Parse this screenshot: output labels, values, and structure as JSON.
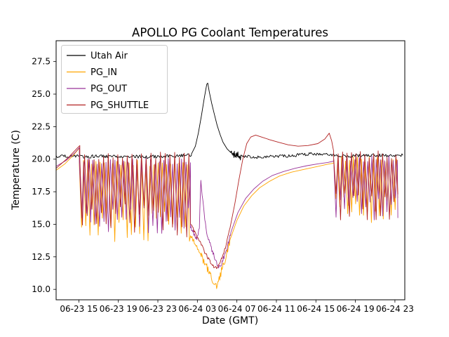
{
  "chart_data": {
    "type": "line",
    "title": "APOLLO PG Coolant Temperatures",
    "xlabel": "Date (GMT)",
    "ylabel": "Temperature (C)",
    "x_unit": "hours since 06-23 00:00 GMT",
    "xlim": [
      12.7,
      48.0
    ],
    "ylim": [
      9.2,
      29.1
    ],
    "x_ticks": [
      15,
      19,
      23,
      27,
      31,
      35,
      39,
      43,
      47
    ],
    "x_tick_labels": [
      "06-23 15",
      "06-23 19",
      "06-23 23",
      "06-24 03",
      "06-24 07",
      "06-24 11",
      "06-24 15",
      "06-24 19",
      "06-24 23"
    ],
    "y_ticks": [
      10.0,
      12.5,
      15.0,
      17.5,
      20.0,
      22.5,
      25.0,
      27.5
    ],
    "grid": false,
    "legend_position": "upper left",
    "series": [
      {
        "name": "Utah Air",
        "color": "#000000",
        "segments": [
          {
            "type": "path",
            "pts": [
              [
                12.7,
                20.2
              ],
              [
                18.0,
                20.22
              ],
              [
                22.0,
                20.18
              ],
              [
                26.4,
                20.3
              ]
            ],
            "amp": 0.13,
            "step": 0.09,
            "seed": 21
          },
          {
            "type": "path",
            "pts": [
              [
                26.4,
                20.4
              ],
              [
                26.8,
                21.0
              ],
              [
                27.1,
                22.0
              ],
              [
                27.4,
                23.3
              ],
              [
                27.7,
                24.7
              ],
              [
                27.95,
                25.75
              ],
              [
                28.05,
                25.85
              ],
              [
                28.2,
                25.2
              ],
              [
                28.45,
                24.3
              ],
              [
                28.7,
                23.5
              ],
              [
                29.0,
                22.6
              ],
              [
                29.3,
                21.9
              ],
              [
                29.6,
                21.3
              ],
              [
                30.0,
                20.8
              ],
              [
                30.4,
                20.5
              ]
            ]
          },
          {
            "type": "path",
            "pts": [
              [
                30.4,
                20.5
              ],
              [
                31.4,
                20.2
              ]
            ],
            "amp": 0.3,
            "step": 0.05,
            "seed": 22
          },
          {
            "type": "path",
            "pts": [
              [
                31.4,
                20.2
              ],
              [
                33.5,
                20.15
              ],
              [
                36.0,
                20.25
              ],
              [
                38.5,
                20.4
              ],
              [
                40.0,
                20.35
              ],
              [
                42.5,
                20.25
              ],
              [
                45.0,
                20.3
              ],
              [
                47.8,
                20.3
              ]
            ],
            "amp": 0.12,
            "step": 0.09,
            "seed": 23
          }
        ]
      },
      {
        "name": "PG_IN",
        "color": "#FFA500",
        "segments": [
          {
            "type": "path",
            "pts": [
              [
                12.7,
                19.15
              ],
              [
                13.6,
                19.65
              ],
              [
                14.5,
                20.35
              ],
              [
                15.05,
                20.85
              ]
            ]
          },
          {
            "type": "saw",
            "x0": 15.05,
            "x1": 26.3,
            "min": 13.6,
            "max": 19.95,
            "period": 0.42,
            "lowVar": 2.4,
            "hiVar": 0.5,
            "seed": 7
          },
          {
            "type": "path",
            "pts": [
              [
                26.3,
                14.2
              ],
              [
                26.7,
                13.6
              ],
              [
                27.1,
                13.0
              ],
              [
                27.4,
                12.5
              ]
            ],
            "amp": 0.15,
            "step": 0.08,
            "seed": 31
          },
          {
            "type": "path",
            "pts": [
              [
                27.4,
                12.5
              ],
              [
                27.9,
                11.8
              ],
              [
                28.3,
                11.2
              ],
              [
                28.7,
                10.5
              ],
              [
                28.95,
                10.25
              ],
              [
                29.2,
                10.7
              ],
              [
                29.5,
                11.6
              ],
              [
                29.9,
                12.6
              ],
              [
                30.3,
                13.8
              ]
            ],
            "amp": 0.3,
            "step": 0.06,
            "seed": 32
          },
          {
            "type": "path",
            "pts": [
              [
                30.3,
                13.8
              ],
              [
                31.0,
                15.3
              ],
              [
                31.7,
                16.4
              ],
              [
                32.5,
                17.2
              ],
              [
                33.3,
                17.8
              ],
              [
                34.3,
                18.3
              ],
              [
                35.3,
                18.7
              ],
              [
                36.5,
                19.0
              ],
              [
                37.7,
                19.2
              ],
              [
                38.9,
                19.4
              ],
              [
                40.1,
                19.6
              ],
              [
                40.8,
                19.7
              ]
            ]
          },
          {
            "type": "saw",
            "x0": 40.8,
            "x1": 47.3,
            "min": 14.9,
            "max": 20.25,
            "period": 0.4,
            "lowVar": 2.2,
            "hiVar": 0.5,
            "seed": 11
          }
        ]
      },
      {
        "name": "PG_OUT",
        "color": "#993399",
        "segments": [
          {
            "type": "path",
            "pts": [
              [
                12.7,
                19.45
              ],
              [
                13.7,
                19.9
              ],
              [
                14.6,
                20.5
              ],
              [
                15.05,
                20.9
              ]
            ]
          },
          {
            "type": "saw",
            "x0": 15.05,
            "x1": 26.3,
            "min": 14.3,
            "max": 20.1,
            "period": 0.45,
            "lowVar": 2.0,
            "hiVar": 0.5,
            "seed": 3
          },
          {
            "type": "path",
            "pts": [
              [
                26.3,
                14.9
              ],
              [
                26.7,
                14.2
              ],
              [
                27.0,
                13.9
              ],
              [
                27.2,
                14.8
              ],
              [
                27.35,
                18.4
              ],
              [
                27.55,
                16.8
              ],
              [
                27.75,
                15.3
              ],
              [
                28.0,
                14.2
              ],
              [
                28.3,
                13.4
              ],
              [
                28.7,
                12.6
              ],
              [
                29.0,
                11.9
              ],
              [
                29.15,
                11.55
              ],
              [
                29.4,
                11.9
              ],
              [
                29.7,
                12.5
              ],
              [
                30.0,
                13.2
              ],
              [
                30.4,
                14.4
              ]
            ],
            "amp": 0.2,
            "step": 0.06,
            "seed": 41
          },
          {
            "type": "path",
            "pts": [
              [
                30.4,
                14.4
              ],
              [
                31.1,
                15.9
              ],
              [
                31.9,
                17.0
              ],
              [
                32.7,
                17.7
              ],
              [
                33.6,
                18.3
              ],
              [
                34.6,
                18.75
              ],
              [
                35.7,
                19.05
              ],
              [
                36.9,
                19.3
              ],
              [
                38.1,
                19.5
              ],
              [
                39.3,
                19.65
              ],
              [
                40.2,
                19.75
              ],
              [
                40.8,
                19.85
              ]
            ]
          },
          {
            "type": "saw",
            "x0": 40.8,
            "x1": 47.3,
            "min": 15.3,
            "max": 20.3,
            "period": 0.43,
            "lowVar": 1.8,
            "hiVar": 0.5,
            "seed": 5
          }
        ]
      },
      {
        "name": "PG_SHUTTLE",
        "color": "#B22222",
        "segments": [
          {
            "type": "path",
            "pts": [
              [
                12.7,
                19.3
              ],
              [
                13.9,
                20.1
              ],
              [
                14.9,
                20.9
              ],
              [
                15.1,
                21.05
              ]
            ]
          },
          {
            "type": "saw",
            "x0": 15.1,
            "x1": 26.3,
            "min": 14.0,
            "max": 20.55,
            "period": 0.48,
            "lowVar": 2.6,
            "hiVar": 0.6,
            "seed": 9
          },
          {
            "type": "path",
            "pts": [
              [
                26.3,
                15.1
              ],
              [
                26.8,
                14.3
              ],
              [
                27.2,
                13.7
              ],
              [
                27.6,
                13.1
              ],
              [
                28.0,
                12.5
              ],
              [
                28.4,
                12.0
              ],
              [
                28.8,
                11.65
              ],
              [
                29.1,
                11.8
              ],
              [
                29.5,
                12.5
              ],
              [
                29.9,
                13.4
              ],
              [
                30.3,
                14.7
              ]
            ],
            "amp": 0.15,
            "step": 0.07,
            "seed": 51
          },
          {
            "type": "path",
            "pts": [
              [
                30.3,
                14.7
              ],
              [
                30.8,
                16.6
              ],
              [
                31.2,
                18.4
              ],
              [
                31.6,
                20.0
              ],
              [
                32.0,
                21.2
              ],
              [
                32.4,
                21.7
              ],
              [
                32.9,
                21.85
              ],
              [
                33.5,
                21.7
              ],
              [
                34.3,
                21.5
              ],
              [
                35.2,
                21.3
              ],
              [
                36.2,
                21.1
              ],
              [
                37.2,
                21.0
              ],
              [
                38.2,
                21.05
              ],
              [
                39.2,
                21.2
              ],
              [
                39.9,
                21.55
              ],
              [
                40.35,
                22.0
              ],
              [
                40.6,
                21.4
              ],
              [
                40.8,
                20.6
              ]
            ]
          },
          {
            "type": "saw",
            "x0": 40.8,
            "x1": 47.3,
            "min": 15.2,
            "max": 20.65,
            "period": 0.45,
            "lowVar": 2.3,
            "hiVar": 0.6,
            "seed": 13
          }
        ]
      }
    ]
  }
}
